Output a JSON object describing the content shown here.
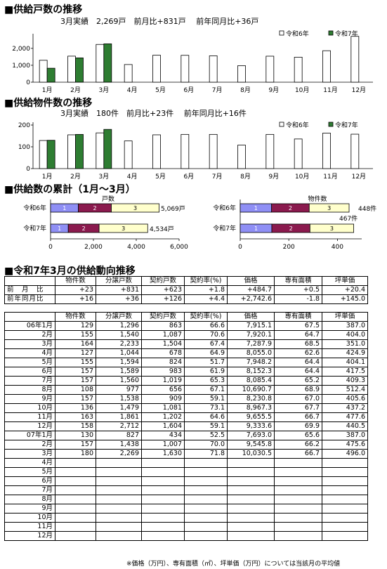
{
  "sections": {
    "s1_title": "■供給戸数の推移",
    "s1_sub": "3月実績　2,269戸　前月比+831戸　 前年同月比+36戸",
    "s2_title": "■供給物件数の推移",
    "s2_sub": "3月実績　180件　前月比+23件　 前年同月比+16件",
    "s3_title": "■供給数の累計（1月～3月）",
    "s4_title": "■令和7年3月の供給動向推移"
  },
  "colors": {
    "prev": "#ffffff",
    "curr": "#2e7d32",
    "seg1": "#8f8ff5",
    "seg2": "#8b1a4e",
    "seg3": "#ffffcc"
  },
  "chart_data": [
    {
      "type": "bar",
      "categories": [
        "1月",
        "2月",
        "3月",
        "4月",
        "5月",
        "6月",
        "7月",
        "8月",
        "9月",
        "10月",
        "11月",
        "12月"
      ],
      "series": [
        {
          "name": "令和6年",
          "values": [
            1296,
            1540,
            2233,
            1044,
            1594,
            1589,
            1560,
            977,
            1538,
            1479,
            1861,
            2712
          ]
        },
        {
          "name": "令和7年",
          "values": [
            827,
            1438,
            2269,
            null,
            null,
            null,
            null,
            null,
            null,
            null,
            null,
            null
          ]
        }
      ],
      "yticks": [
        "0",
        "1,000",
        "2,000"
      ],
      "ylim": [
        0,
        2700
      ],
      "legend": "top-right"
    },
    {
      "type": "bar",
      "categories": [
        "1月",
        "2月",
        "3月",
        "4月",
        "5月",
        "6月",
        "7月",
        "8月",
        "9月",
        "10月",
        "11月",
        "12月"
      ],
      "series": [
        {
          "name": "令和6年",
          "values": [
            129,
            155,
            164,
            127,
            155,
            157,
            157,
            108,
            157,
            136,
            163,
            158
          ]
        },
        {
          "name": "令和7年",
          "values": [
            130,
            157,
            180,
            null,
            null,
            null,
            null,
            null,
            null,
            null,
            null,
            null
          ]
        }
      ],
      "yticks": [
        "0",
        "100",
        "200"
      ],
      "ylim": [
        0,
        200
      ],
      "legend": "top-right"
    },
    {
      "type": "bar",
      "title": "戸数",
      "categories": [
        "令和6年",
        "令和7年"
      ],
      "stacked": true,
      "series": [
        {
          "name": "1",
          "values": [
            1296,
            827
          ]
        },
        {
          "name": "2",
          "values": [
            1540,
            1438
          ]
        },
        {
          "name": "3",
          "values": [
            2233,
            2269
          ]
        }
      ],
      "totals": [
        "5,069戸",
        "4,534戸"
      ],
      "xticks": [
        "0",
        "2,000",
        "4,000",
        "6,000"
      ],
      "xlim": [
        0,
        6000
      ]
    },
    {
      "type": "bar",
      "title": "物件数",
      "categories": [
        "令和6年",
        "令和7年"
      ],
      "stacked": true,
      "series": [
        {
          "name": "1",
          "values": [
            129,
            130
          ]
        },
        {
          "name": "2",
          "values": [
            155,
            157
          ]
        },
        {
          "name": "3",
          "values": [
            164,
            180
          ]
        }
      ],
      "totals": [
        "448件",
        "467件"
      ],
      "xticks": [
        "0",
        "200",
        "400"
      ],
      "xlim": [
        0,
        500
      ]
    }
  ],
  "table1": {
    "headers": [
      "物件数",
      "分譲戸数",
      "契約戸数",
      "契約率(%)",
      "価格",
      "専有面積",
      "坪単価"
    ],
    "rows": [
      {
        "label": "前　月　比",
        "cells": [
          "+23",
          "+831",
          "+623",
          "+1.8",
          "+484.7",
          "+0.5",
          "+20.4"
        ]
      },
      {
        "label": "前年同月比",
        "cells": [
          "+16",
          "+36",
          "+126",
          "+4.4",
          "+2,742.6",
          "-1.8",
          "+145.0"
        ]
      }
    ]
  },
  "table2": {
    "headers": [
      "物件数",
      "分譲戸数",
      "契約戸数",
      "契約率(%)",
      "価格",
      "専有面積",
      "坪単価"
    ],
    "rows": [
      {
        "label": "06年1月",
        "cells": [
          "129",
          "1,296",
          "863",
          "66.6",
          "7,915.1",
          "67.5",
          "387.0"
        ]
      },
      {
        "label": "2月",
        "cells": [
          "155",
          "1,540",
          "1,087",
          "70.6",
          "7,920.1",
          "64.7",
          "404.0"
        ]
      },
      {
        "label": "3月",
        "cells": [
          "164",
          "2,233",
          "1,504",
          "67.4",
          "7,287.9",
          "68.5",
          "351.0"
        ]
      },
      {
        "label": "4月",
        "cells": [
          "127",
          "1,044",
          "678",
          "64.9",
          "8,055.0",
          "62.6",
          "424.9"
        ]
      },
      {
        "label": "5月",
        "cells": [
          "155",
          "1,594",
          "824",
          "51.7",
          "7,948.2",
          "64.4",
          "404.1"
        ]
      },
      {
        "label": "6月",
        "cells": [
          "157",
          "1,589",
          "983",
          "61.9",
          "8,152.3",
          "64.4",
          "417.5"
        ]
      },
      {
        "label": "7月",
        "cells": [
          "157",
          "1,560",
          "1,019",
          "65.3",
          "8,085.4",
          "65.2",
          "409.3"
        ]
      },
      {
        "label": "8月",
        "cells": [
          "108",
          "977",
          "656",
          "67.1",
          "10,690.7",
          "68.9",
          "512.4"
        ]
      },
      {
        "label": "9月",
        "cells": [
          "157",
          "1,538",
          "909",
          "59.1",
          "8,230.8",
          "67.0",
          "405.6"
        ]
      },
      {
        "label": "10月",
        "cells": [
          "136",
          "1,479",
          "1,081",
          "73.1",
          "8,967.3",
          "67.7",
          "437.2"
        ]
      },
      {
        "label": "11月",
        "cells": [
          "163",
          "1,861",
          "1,202",
          "64.6",
          "9,655.5",
          "66.7",
          "477.6"
        ]
      },
      {
        "label": "12月",
        "cells": [
          "158",
          "2,712",
          "1,604",
          "59.1",
          "9,333.6",
          "69.9",
          "440.5"
        ]
      },
      {
        "label": "07年1月",
        "cells": [
          "130",
          "827",
          "434",
          "52.5",
          "7,693.0",
          "65.6",
          "387.0"
        ]
      },
      {
        "label": "2月",
        "cells": [
          "157",
          "1,438",
          "1,007",
          "70.0",
          "9,545.8",
          "66.2",
          "475.6"
        ]
      },
      {
        "label": "3月",
        "cells": [
          "180",
          "2,269",
          "1,630",
          "71.8",
          "10,030.5",
          "66.7",
          "496.0"
        ]
      },
      {
        "label": "4月",
        "cells": [
          "",
          "",
          "",
          "",
          "",
          "",
          ""
        ]
      },
      {
        "label": "5月",
        "cells": [
          "",
          "",
          "",
          "",
          "",
          "",
          ""
        ]
      },
      {
        "label": "6月",
        "cells": [
          "",
          "",
          "",
          "",
          "",
          "",
          ""
        ]
      },
      {
        "label": "7月",
        "cells": [
          "",
          "",
          "",
          "",
          "",
          "",
          ""
        ]
      },
      {
        "label": "8月",
        "cells": [
          "",
          "",
          "",
          "",
          "",
          "",
          ""
        ]
      },
      {
        "label": "9月",
        "cells": [
          "",
          "",
          "",
          "",
          "",
          "",
          ""
        ]
      },
      {
        "label": "10月",
        "cells": [
          "",
          "",
          "",
          "",
          "",
          "",
          ""
        ]
      },
      {
        "label": "11月",
        "cells": [
          "",
          "",
          "",
          "",
          "",
          "",
          ""
        ]
      },
      {
        "label": "12月",
        "cells": [
          "",
          "",
          "",
          "",
          "",
          "",
          ""
        ]
      }
    ]
  },
  "note": "※価格（万円）、専有面積（㎡）、坪単価（万円）については当該月の平均値"
}
